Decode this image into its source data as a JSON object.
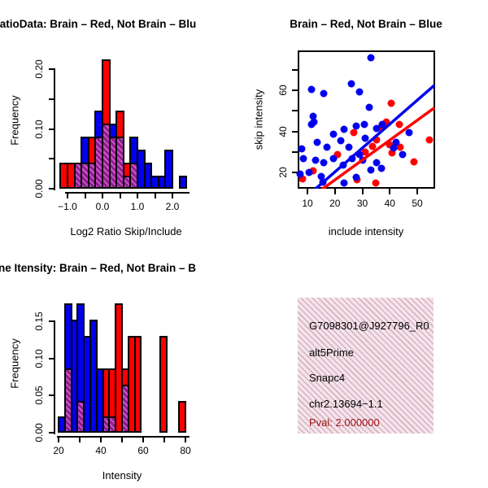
{
  "colors": {
    "red": "#ff0000",
    "blue": "#0000ee",
    "overlap_purple": "#9b2d9b",
    "info_bg": "#f9e1f3",
    "pval_red": "#9b1313",
    "black": "#000000"
  },
  "chart_data": [
    {
      "type": "bar",
      "subtype": "overlaid-histogram",
      "title": "RatioData: Brain – Red, Not Brain – Blu",
      "xlabel": "Log2 Ratio Skip/Include",
      "ylabel": "Frequency",
      "bin_start": -1.2,
      "bin_width": 0.2,
      "series": [
        {
          "name": "Brain",
          "color_key": "red",
          "values": [
            0.043,
            0.043,
            0.043,
            0.043,
            0.087,
            0.087,
            0.217,
            0.087,
            0.13,
            0.043,
            0.043,
            0,
            0,
            0,
            0,
            0,
            0,
            0
          ]
        },
        {
          "name": "Not Brain",
          "color_key": "blue",
          "values": [
            0,
            0,
            0.043,
            0.087,
            0.043,
            0.13,
            0.109,
            0.109,
            0.087,
            0.022,
            0.087,
            0.065,
            0.043,
            0.022,
            0.022,
            0.065,
            0,
            0.022
          ]
        }
      ],
      "overlap_rule": "min(red,blue) drawn as hatched purple",
      "xlim": [
        -1.3,
        2.4
      ],
      "ylim": [
        0,
        0.22
      ],
      "x_tick_vals": [
        -1.0,
        -0.5,
        0.0,
        0.5,
        1.0,
        1.5,
        2.0
      ],
      "x_tick_labels": [
        "−1.0",
        "",
        "0.0",
        "",
        "1.0",
        "",
        "2.0"
      ],
      "y_tick_vals": [
        0,
        0.05,
        0.1,
        0.15,
        0.2
      ],
      "y_tick_labels": [
        "0.00",
        "",
        "0.10",
        "",
        "0.20"
      ]
    },
    {
      "type": "scatter",
      "title": "Brain – Red, Not Brain – Blue",
      "xlabel": "include intensity",
      "ylabel": "skip intensity",
      "xlim": [
        6.4,
        56.5
      ],
      "ylim": [
        12,
        79.5
      ],
      "x_tick_vals": [
        10,
        20,
        30,
        40,
        50
      ],
      "x_tick_labels": [
        "10",
        "20",
        "30",
        "40",
        "50"
      ],
      "y_tick_vals": [
        20,
        30,
        40,
        50,
        60,
        70
      ],
      "y_tick_labels": [
        "20",
        "",
        "40",
        "",
        "60",
        ""
      ],
      "series": [
        {
          "name": "Brain",
          "color_key": "red",
          "points": [
            [
              40.4,
              53.7
            ],
            [
              43.6,
              43.4
            ],
            [
              38.6,
              44.6
            ],
            [
              36.8,
              41.6
            ],
            [
              27.0,
              39.4
            ],
            [
              35.3,
              35.9
            ],
            [
              39.8,
              33.5
            ],
            [
              43.9,
              32.3
            ],
            [
              33.8,
              32.5
            ],
            [
              40.9,
              29.5
            ],
            [
              31.1,
              29.9
            ],
            [
              21.0,
              28.7
            ],
            [
              48.8,
              25.2
            ],
            [
              54.3,
              35.9
            ],
            [
              12.1,
              20.8
            ],
            [
              8.3,
              16.8
            ],
            [
              35.0,
              14.8
            ],
            [
              28.0,
              16.3
            ]
          ]
        },
        {
          "name": "Not Brain",
          "color_key": "blue",
          "points": [
            [
              33.2,
              76.0
            ],
            [
              26.1,
              63.2
            ],
            [
              11.5,
              60.5
            ],
            [
              16.0,
              58.5
            ],
            [
              29.0,
              59.3
            ],
            [
              32.6,
              51.7
            ],
            [
              12.1,
              47.4
            ],
            [
              12.3,
              44.5
            ],
            [
              11.5,
              43.4
            ],
            [
              23.4,
              41.0
            ],
            [
              27.9,
              42.6
            ],
            [
              30.8,
              43.4
            ],
            [
              35.1,
              41.4
            ],
            [
              37.4,
              43.4
            ],
            [
              46.9,
              39.4
            ],
            [
              31.0,
              36.7
            ],
            [
              42.4,
              34.7
            ],
            [
              19.5,
              38.7
            ],
            [
              22.0,
              35.5
            ],
            [
              13.6,
              34.7
            ],
            [
              7.9,
              31.5
            ],
            [
              17.2,
              32.1
            ],
            [
              25.0,
              32.1
            ],
            [
              8.6,
              26.7
            ],
            [
              12.9,
              26.0
            ],
            [
              16.0,
              24.8
            ],
            [
              19.5,
              26.7
            ],
            [
              26.4,
              26.7
            ],
            [
              29.0,
              28.7
            ],
            [
              30.0,
              26.0
            ],
            [
              41.3,
              31.7
            ],
            [
              44.8,
              28.7
            ],
            [
              35.3,
              24.8
            ],
            [
              36.9,
              21.9
            ],
            [
              23.0,
              23.5
            ],
            [
              10.6,
              20.1
            ],
            [
              7.3,
              19.4
            ],
            [
              15.1,
              18.1
            ],
            [
              27.8,
              17.7
            ],
            [
              33.0,
              21.3
            ],
            [
              23.2,
              14.9
            ],
            [
              15.6,
              15.3
            ]
          ]
        }
      ],
      "regression_lines": [
        {
          "color_key": "blue",
          "x1": 12.5,
          "y1": 11.5,
          "x2": 56.3,
          "y2": 62.5
        },
        {
          "color_key": "red",
          "x1": 15.0,
          "y1": 11.5,
          "x2": 56.3,
          "y2": 51.5
        }
      ]
    },
    {
      "type": "bar",
      "subtype": "overlaid-histogram",
      "title": "ne Itensity: Brain – Red, Not Brain – B",
      "xlabel": "Intensity",
      "ylabel": "Frequency",
      "bin_start": 20,
      "bin_width": 3,
      "series": [
        {
          "name": "Brain",
          "color_key": "red",
          "values": [
            0,
            0.087,
            0,
            0.043,
            0,
            0,
            0,
            0.087,
            0.087,
            0.174,
            0.087,
            0.13,
            0.13,
            0,
            0,
            0,
            0.13,
            0,
            0,
            0.043
          ]
        },
        {
          "name": "Not Brain",
          "color_key": "blue",
          "values": [
            0.022,
            0.174,
            0.152,
            0.174,
            0.13,
            0.152,
            0.087,
            0.022,
            0.022,
            0,
            0.065,
            0,
            0,
            0,
            0,
            0,
            0,
            0,
            0,
            0
          ]
        }
      ],
      "overlap_rule": "min(red,blue) drawn as hatched purple",
      "xlim": [
        18.5,
        82
      ],
      "ylim": [
        0,
        0.18
      ],
      "x_tick_vals": [
        20,
        30,
        40,
        50,
        60,
        70,
        80
      ],
      "x_tick_labels": [
        "20",
        "",
        "40",
        "",
        "60",
        "",
        "80"
      ],
      "y_tick_vals": [
        0,
        0.05,
        0.1,
        0.15
      ],
      "y_tick_labels": [
        "0.00",
        "0.05",
        "0.10",
        "0.15"
      ]
    }
  ],
  "info_box": {
    "lines": [
      "G7098301@J927796_R0",
      "alt5Prime",
      "Snapc4",
      "chr2.13694−1.1"
    ],
    "pval_line": "Pval: 2.000000"
  }
}
